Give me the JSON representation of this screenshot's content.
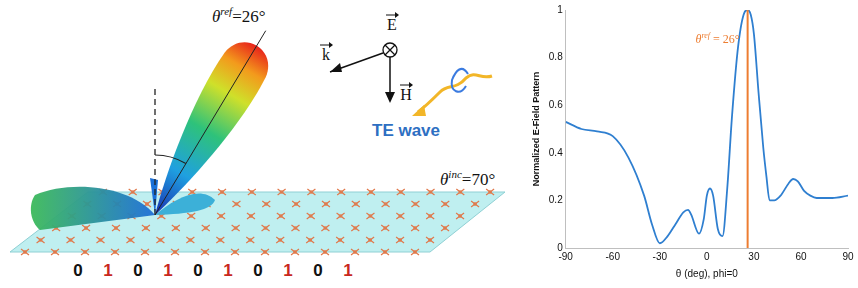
{
  "diagram": {
    "reflection_label": {
      "symbol": "θ",
      "superscript": "ref",
      "text": "=26°"
    },
    "incidence_label": {
      "symbol": "θ",
      "superscript": "inc",
      "text": "=70°"
    },
    "wave_label": "TE wave",
    "vectors": {
      "electric": "E",
      "wave": "k",
      "magnetic": "H"
    },
    "bits": [
      "0",
      "1",
      "0",
      "1",
      "0",
      "1",
      "0",
      "1",
      "0",
      "1"
    ]
  },
  "chart_data": {
    "type": "line",
    "y_label": "Normalized E-Field Pattern",
    "x_label": "θ (deg), phi=0",
    "x": [
      -90,
      -80,
      -70,
      -60,
      -50,
      -40,
      -35,
      -30,
      -25,
      -20,
      -15,
      -12,
      -10,
      -5,
      -2,
      0,
      2,
      4,
      7,
      10,
      13,
      16,
      20,
      24,
      26,
      28,
      30,
      33,
      36,
      38,
      40,
      43,
      47,
      52,
      55,
      58,
      62,
      66,
      70,
      80,
      90
    ],
    "values": [
      0.53,
      0.5,
      0.49,
      0.47,
      0.38,
      0.22,
      0.1,
      0.02,
      0.05,
      0.1,
      0.15,
      0.16,
      0.14,
      0.06,
      0.12,
      0.22,
      0.25,
      0.22,
      0.08,
      0.05,
      0.25,
      0.55,
      0.85,
      0.99,
      1.0,
      0.98,
      0.9,
      0.65,
      0.42,
      0.3,
      0.2,
      0.2,
      0.22,
      0.27,
      0.29,
      0.28,
      0.24,
      0.22,
      0.21,
      0.21,
      0.22
    ],
    "color": "#2f7fd0",
    "marker": "none",
    "line_style": "solid",
    "xlim": [
      -90,
      90
    ],
    "xticks": [
      -90,
      -60,
      -30,
      0,
      30,
      60,
      90
    ],
    "ylim": [
      0,
      1
    ],
    "yticks": [
      0,
      0.2,
      0.4,
      0.6,
      0.8,
      1
    ],
    "grid": false,
    "annotation": {
      "x": 26,
      "symbol": "θ",
      "superscript": "ref",
      "text": " = 26°",
      "color": "#ed7d31"
    }
  }
}
